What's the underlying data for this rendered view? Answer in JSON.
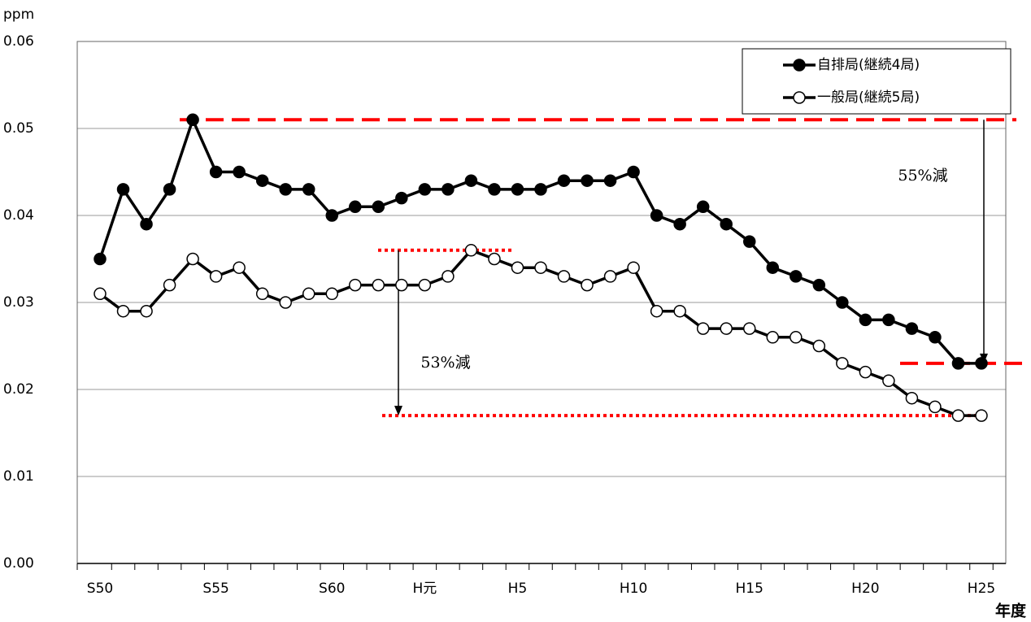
{
  "chart_data": {
    "type": "line",
    "y_label": "ppm",
    "x_label": "年度",
    "categories": [
      "S50",
      null,
      null,
      null,
      null,
      "S55",
      null,
      null,
      null,
      null,
      "S60",
      null,
      null,
      null,
      "H元",
      null,
      null,
      null,
      "H5",
      null,
      null,
      null,
      null,
      "H10",
      null,
      null,
      null,
      null,
      "H15",
      null,
      null,
      null,
      null,
      "H20",
      null,
      null,
      null,
      null,
      "H25"
    ],
    "series": [
      {
        "name": "自排局(継続4局)",
        "color": "#000000",
        "marker_fill": "#000000",
        "values": [
          0.035,
          0.043,
          0.039,
          0.043,
          0.051,
          0.045,
          0.045,
          0.044,
          0.043,
          0.043,
          0.04,
          0.041,
          0.041,
          0.042,
          0.043,
          0.043,
          0.044,
          0.043,
          0.043,
          0.043,
          0.044,
          0.044,
          0.044,
          0.045,
          0.04,
          0.039,
          0.041,
          0.039,
          0.037,
          0.034,
          0.033,
          0.032,
          0.03,
          0.028,
          0.028,
          0.027,
          0.026,
          0.023,
          0.023
        ]
      },
      {
        "name": "一般局(継続5局)",
        "color": "#000000",
        "marker_fill": "#ffffff",
        "values": [
          0.031,
          0.029,
          0.029,
          0.032,
          0.035,
          0.033,
          0.034,
          0.031,
          0.03,
          0.031,
          0.031,
          0.032,
          0.032,
          0.032,
          0.032,
          0.033,
          0.036,
          0.035,
          0.034,
          0.034,
          0.033,
          0.032,
          0.033,
          0.034,
          0.029,
          0.029,
          0.027,
          0.027,
          0.027,
          0.026,
          0.026,
          0.025,
          0.023,
          0.022,
          0.021,
          0.019,
          0.018,
          0.017,
          0.017
        ]
      }
    ],
    "ylim": [
      0,
      0.06
    ],
    "yticks": [
      {
        "value": 0,
        "label": "0.00"
      },
      0.01,
      0.02,
      0.03,
      0.04,
      0.05,
      0.06
    ],
    "grid": true,
    "legend": "upper right",
    "annotations": [
      {
        "text": "55%減",
        "from": 0.051,
        "to": 0.023,
        "color": "#ff0000",
        "line_style": "dashed"
      },
      {
        "text": "53%減",
        "from": 0.036,
        "to": 0.017,
        "color": "#ff0000",
        "line_style": "dotted"
      }
    ]
  }
}
